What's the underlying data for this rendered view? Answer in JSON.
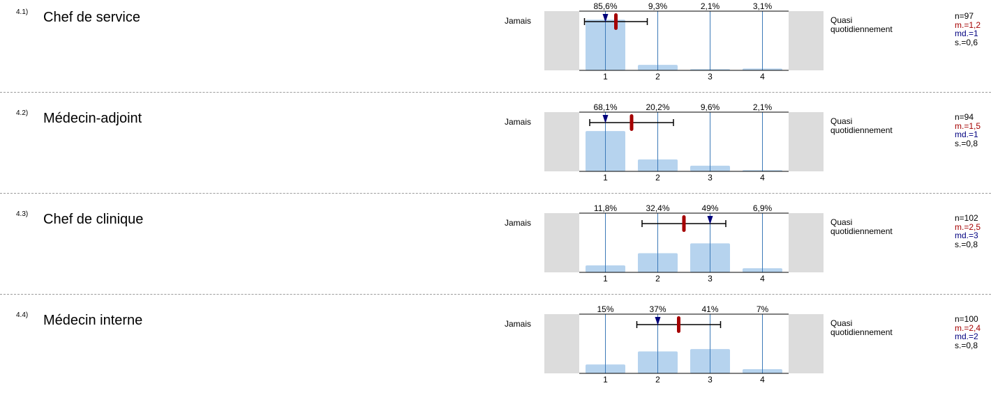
{
  "chart_data": [
    {
      "type": "bar",
      "number": "4.1)",
      "title": "Chef de service",
      "categories": [
        "1",
        "2",
        "3",
        "4"
      ],
      "values": [
        85.6,
        9.3,
        2.1,
        3.1
      ],
      "value_labels": [
        "85,6%",
        "9,3%",
        "2,1%",
        "3,1%"
      ],
      "left_label": "Jamais",
      "right_label_lines": [
        "Quasi",
        "quotidiennement"
      ],
      "mean": 1.2,
      "median": 1,
      "sd": 0.6,
      "stats": {
        "n": "n=97",
        "mean": "m.=1,2",
        "median": "md.=1",
        "sd": "s.=0,6"
      }
    },
    {
      "type": "bar",
      "number": "4.2)",
      "title": "Médecin-adjoint",
      "categories": [
        "1",
        "2",
        "3",
        "4"
      ],
      "values": [
        68.1,
        20.2,
        9.6,
        2.1
      ],
      "value_labels": [
        "68,1%",
        "20,2%",
        "9,6%",
        "2,1%"
      ],
      "left_label": "Jamais",
      "right_label_lines": [
        "Quasi",
        "quotidiennement"
      ],
      "mean": 1.5,
      "median": 1,
      "sd": 0.8,
      "stats": {
        "n": "n=94",
        "mean": "m.=1,5",
        "median": "md.=1",
        "sd": "s.=0,8"
      }
    },
    {
      "type": "bar",
      "number": "4.3)",
      "title": "Chef de clinique",
      "categories": [
        "1",
        "2",
        "3",
        "4"
      ],
      "values": [
        11.8,
        32.4,
        49,
        6.9
      ],
      "value_labels": [
        "11,8%",
        "32,4%",
        "49%",
        "6,9%"
      ],
      "left_label": "Jamais",
      "right_label_lines": [
        "Quasi",
        "quotidiennement"
      ],
      "mean": 2.5,
      "median": 3,
      "sd": 0.8,
      "stats": {
        "n": "n=102",
        "mean": "m.=2,5",
        "median": "md.=3",
        "sd": "s.=0,8"
      }
    },
    {
      "type": "bar",
      "number": "4.4)",
      "title": "Médecin interne",
      "categories": [
        "1",
        "2",
        "3",
        "4"
      ],
      "values": [
        15,
        37,
        41,
        7
      ],
      "value_labels": [
        "15%",
        "37%",
        "41%",
        "7%"
      ],
      "left_label": "Jamais",
      "right_label_lines": [
        "Quasi",
        "quotidiennement"
      ],
      "mean": 2.4,
      "median": 2,
      "sd": 0.8,
      "stats": {
        "n": "n=100",
        "mean": "m.=2,4",
        "median": "md.=2",
        "sd": "s.=0,8"
      }
    }
  ]
}
